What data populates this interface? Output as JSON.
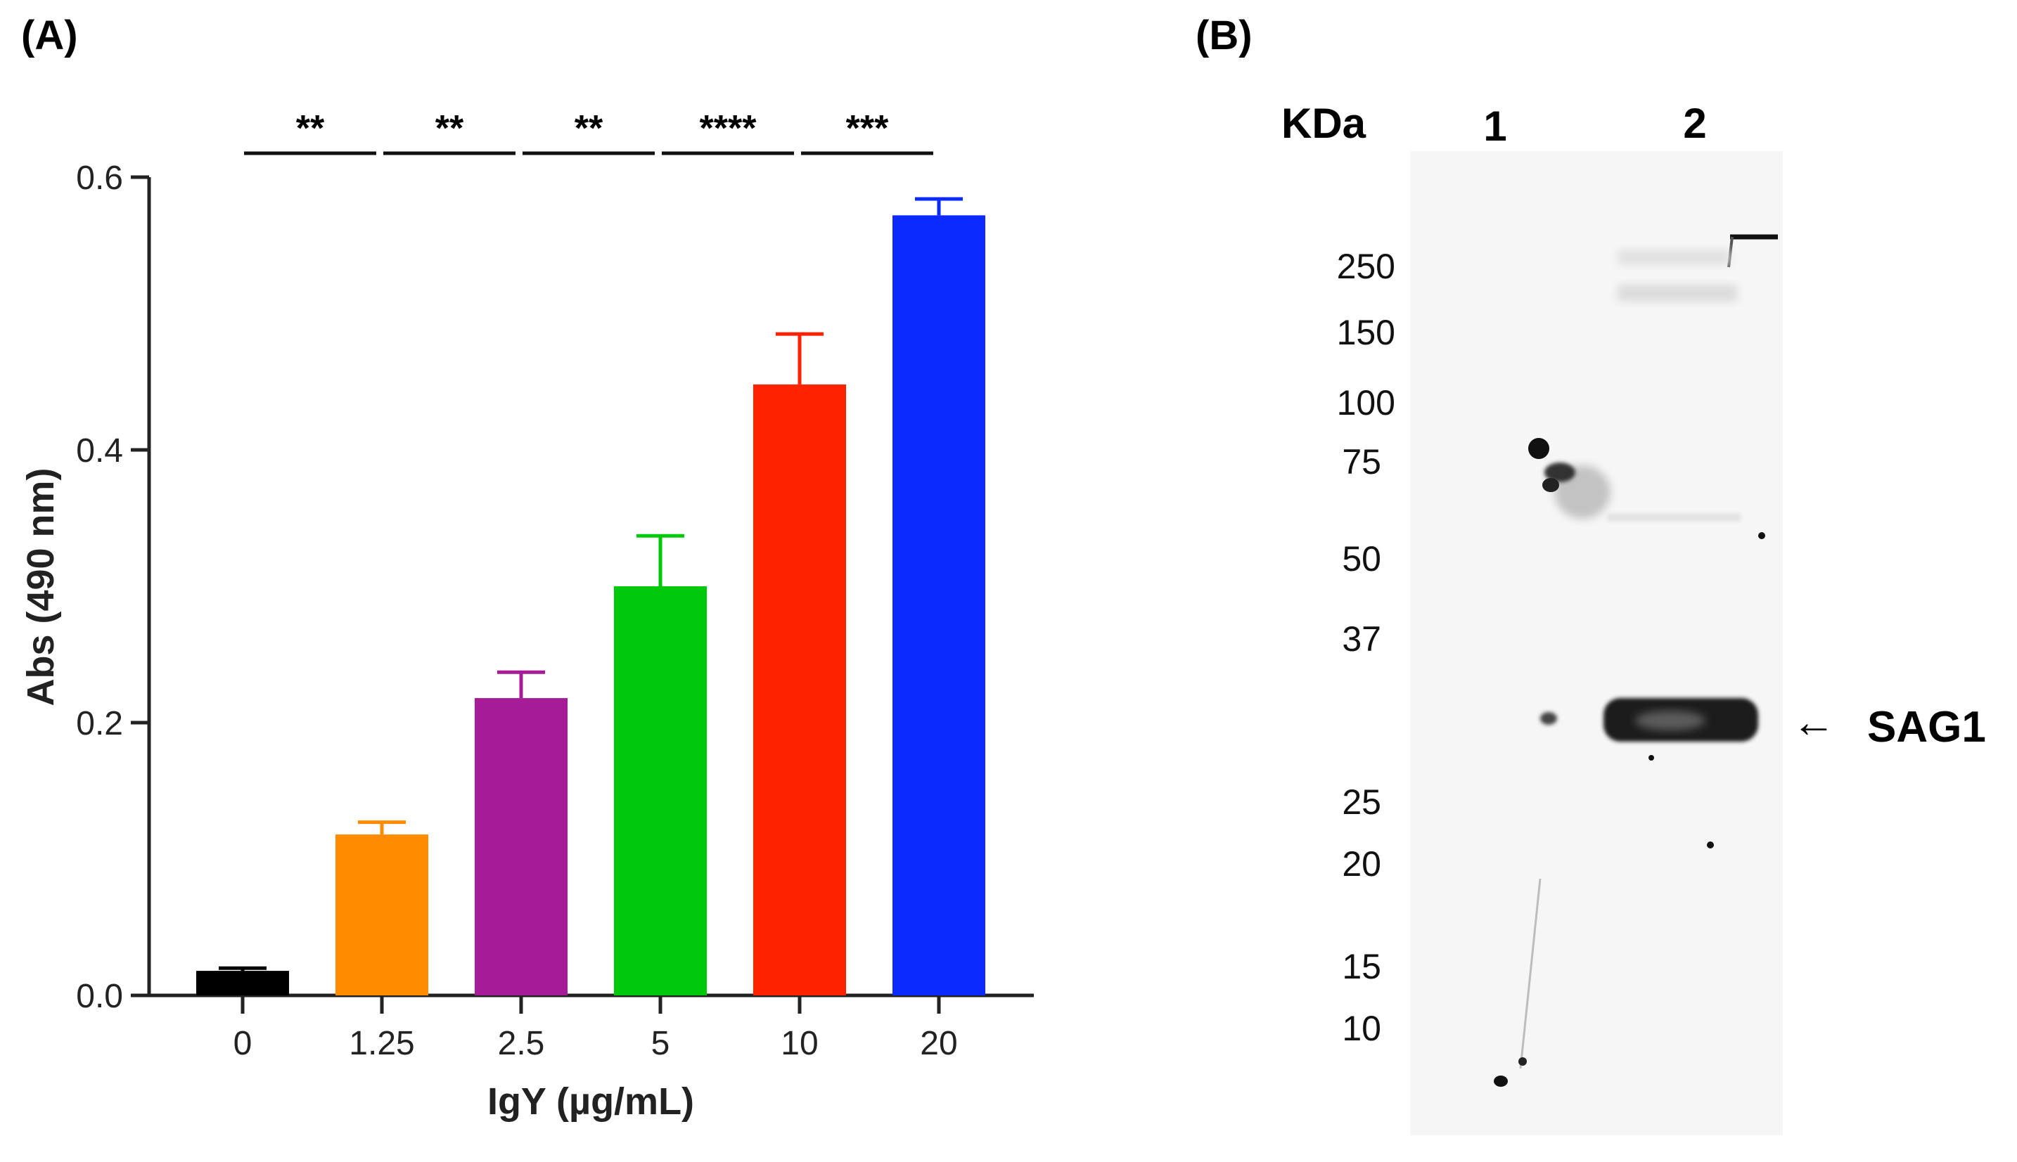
{
  "panels": {
    "a_label": "(A)",
    "b_label": "(B)"
  },
  "chart_data": {
    "type": "bar",
    "title": "",
    "xlabel": "IgY (µg/mL)",
    "ylabel": "Abs (490 nm)",
    "ylim": [
      0,
      0.6
    ],
    "yticks": [
      0.0,
      0.2,
      0.4,
      0.6
    ],
    "ytick_labels": [
      "0.0",
      "0.2",
      "0.4",
      "0.6"
    ],
    "categories": [
      "0",
      "1.25",
      "2.5",
      "5",
      "10",
      "20"
    ],
    "values": [
      0.018,
      0.118,
      0.218,
      0.3,
      0.448,
      0.572
    ],
    "errors": [
      0.002,
      0.009,
      0.019,
      0.037,
      0.037,
      0.012
    ],
    "colors": [
      "#000000",
      "#ff8c00",
      "#a61c96",
      "#00c80a",
      "#ff2200",
      "#0a2aff"
    ],
    "significance": [
      {
        "from": 0,
        "to": 1,
        "label": "**"
      },
      {
        "from": 1,
        "to": 2,
        "label": "**"
      },
      {
        "from": 2,
        "to": 3,
        "label": "**"
      },
      {
        "from": 3,
        "to": 4,
        "label": "****"
      },
      {
        "from": 4,
        "to": 5,
        "label": "***"
      }
    ],
    "grid": false,
    "legend": "none"
  },
  "blot": {
    "unit_label": "KDa",
    "lanes": [
      "1",
      "2"
    ],
    "markers": [
      "250",
      "150",
      "100",
      "75",
      "50",
      "37",
      "25",
      "20",
      "15",
      "10"
    ],
    "band_label": "SAG1",
    "arrow": "←"
  }
}
